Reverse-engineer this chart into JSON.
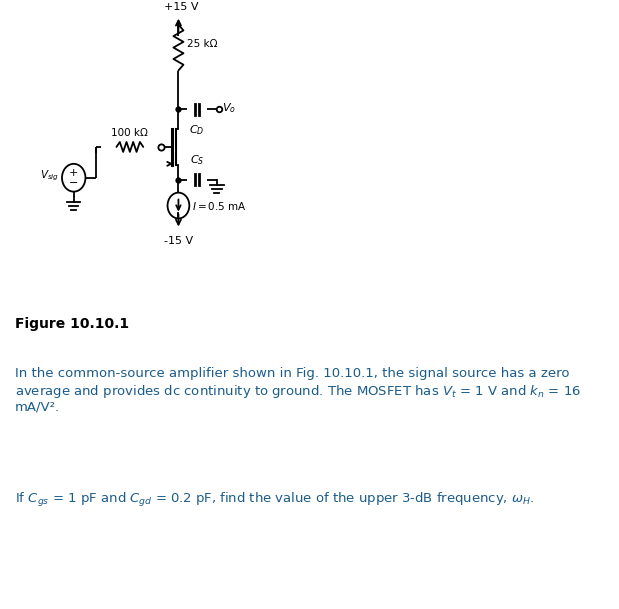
{
  "background_color": "#ffffff",
  "fig_label": "Figure 10.10.1",
  "plus15v_label": "+15 V",
  "minus15v_label": "-15 V",
  "r1_label": "25 kΩ",
  "r2_label": "100 kΩ",
  "current_label": "I = 0.5 mA",
  "cd_label": "C_D",
  "cs_label": "C_S",
  "vsig_label": "V_sig",
  "vo_label": "V_o",
  "circuit_color": "#000000",
  "text_color": "#1a5c8a",
  "fig_label_color": "#000000",
  "circuit_lw": 1.3,
  "para_line1": "In the common-source amplifier shown in Fig. 10.10.1, the signal source has a zero",
  "para_line2": "average and provides dc continuity to ground. The MOSFET has V",
  "para_line2b": " = 1 V and k",
  "para_line2c": " = 16",
  "para_line3": "mA/V².",
  "q_line1a": "If C",
  "q_line1b": " = 1 pF and C",
  "q_line1c": " = 0.2 pF, find the value of the upper 3-dB frequency, ω",
  "q_line1d": "."
}
